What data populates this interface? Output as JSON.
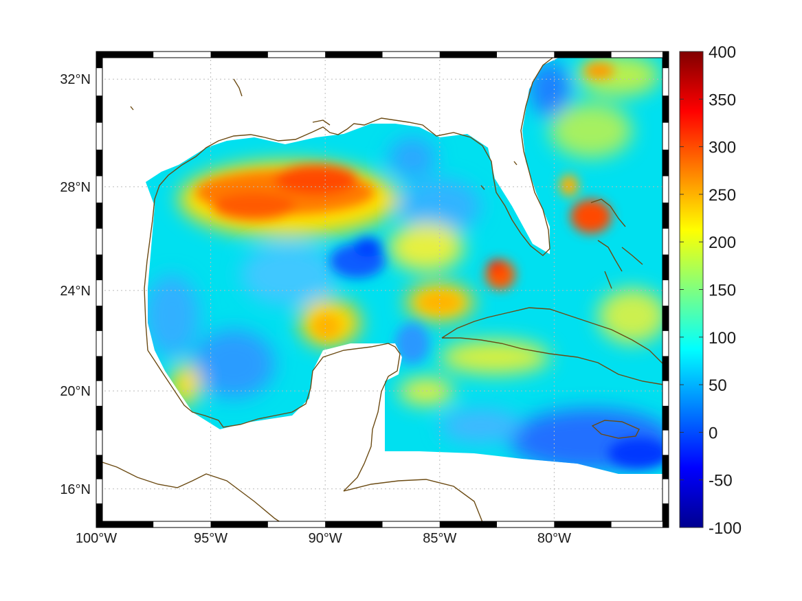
{
  "map": {
    "projection": "mercator",
    "lon_range": [
      -100,
      -75
    ],
    "lat_range": [
      14.4,
      33
    ],
    "lon_tick_labels": [
      "100°W",
      "95°W",
      "90°W",
      "85°W",
      "80°W"
    ],
    "lat_tick_labels": [
      "32°N",
      "28°N",
      "24°N",
      "20°N",
      "16°N"
    ],
    "lon_ticks": [
      -100,
      -95,
      -90,
      -85,
      -80
    ],
    "lat_ticks": [
      32,
      28,
      24,
      20,
      16
    ],
    "grid": "dotted",
    "frame": "black-white checkered border",
    "coastline_color": "#6b4a12",
    "ocean_background": "#00e0f0"
  },
  "colorbar": {
    "labels": [
      "400",
      "350",
      "300",
      "250",
      "200",
      "150",
      "100",
      "50",
      "0",
      "-50",
      "-100"
    ],
    "min": -100,
    "max": 400,
    "colormap": "jet",
    "placement": "right"
  },
  "chart_data": {
    "type": "heatmap",
    "title": "",
    "xlabel": "",
    "ylabel": "",
    "x_range": [
      -100,
      -75
    ],
    "y_range": [
      14.4,
      33
    ],
    "value_range": [
      -100,
      400
    ],
    "features": [
      {
        "name": "northern Gulf high",
        "lon": -91.5,
        "lat": 27.5,
        "value": 310
      },
      {
        "name": "central Gulf low",
        "lon": -89.5,
        "lat": 25.0,
        "value": 40
      },
      {
        "name": "Florida Straits high",
        "lon": -82.5,
        "lat": 24.2,
        "value": 300
      },
      {
        "name": "Bahamas high",
        "lon": -78.3,
        "lat": 26.8,
        "value": 320
      },
      {
        "name": "northeast high",
        "lon": -77.0,
        "lat": 32.2,
        "value": 280
      },
      {
        "name": "Yucatan Channel high",
        "lon": -84.8,
        "lat": 23.1,
        "value": 240
      },
      {
        "name": "Caribbean low",
        "lon": -75.5,
        "lat": 17.2,
        "value": 10
      }
    ]
  }
}
